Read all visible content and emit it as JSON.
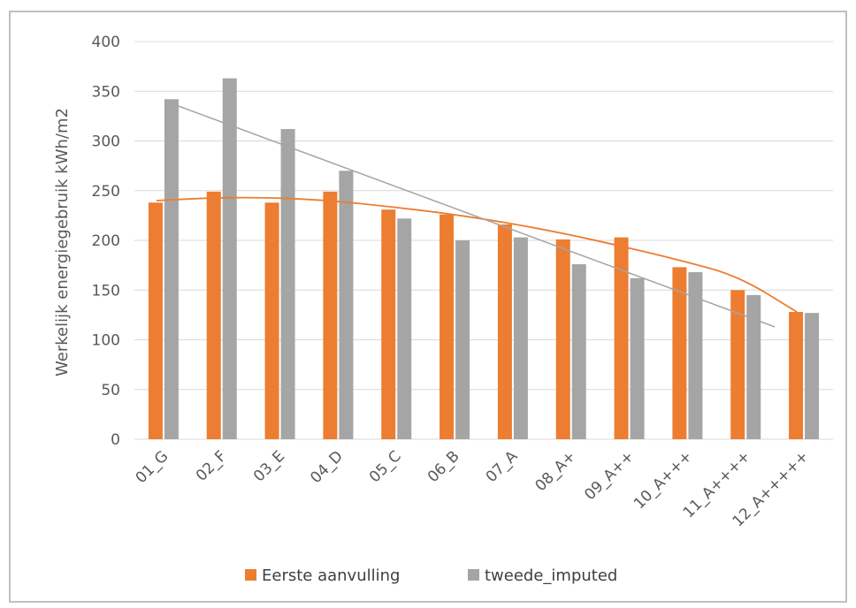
{
  "chart_data": {
    "type": "bar",
    "title": "",
    "xlabel": "",
    "ylabel": "Werkelijk energiegebruik kWh/m2",
    "ylim": [
      0,
      400
    ],
    "yticks": [
      0,
      50,
      100,
      150,
      200,
      250,
      300,
      350,
      400
    ],
    "grid": true,
    "legend_position": "bottom",
    "categories": [
      "01_G",
      "02_F",
      "03_E",
      "04_D",
      "05_C",
      "06_B",
      "07_A",
      "08_A+",
      "09_A++",
      "10_A+++",
      "11_A++++",
      "12_A+++++"
    ],
    "series": [
      {
        "name": "Eerste aanvulling",
        "color": "#ed7d31",
        "values": [
          238,
          249,
          238,
          249,
          231,
          226,
          216,
          201,
          203,
          173,
          150,
          128
        ],
        "trendline": "polynomial",
        "trendline_values": [
          240,
          243,
          243,
          240,
          234,
          227,
          218,
          207,
          194,
          180,
          164,
          128
        ]
      },
      {
        "name": "tweede_imputed",
        "color": "#a5a5a5",
        "values": [
          342,
          363,
          312,
          270,
          222,
          200,
          203,
          176,
          162,
          168,
          145,
          127
        ],
        "trendline": "linear",
        "trendline_values": [
          340,
          113
        ]
      }
    ]
  }
}
